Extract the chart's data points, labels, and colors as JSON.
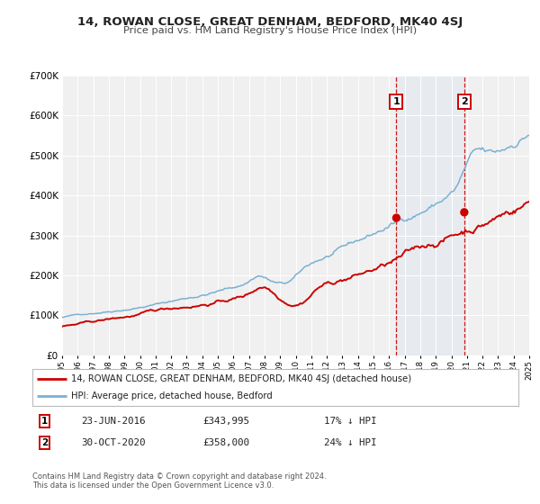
{
  "title": "14, ROWAN CLOSE, GREAT DENHAM, BEDFORD, MK40 4SJ",
  "subtitle": "Price paid vs. HM Land Registry's House Price Index (HPI)",
  "legend_entry1": "14, ROWAN CLOSE, GREAT DENHAM, BEDFORD, MK40 4SJ (detached house)",
  "legend_entry2": "HPI: Average price, detached house, Bedford",
  "annotation1_date": "23-JUN-2016",
  "annotation1_price": "£343,995",
  "annotation1_hpi": "17% ↓ HPI",
  "annotation2_date": "30-OCT-2020",
  "annotation2_price": "£358,000",
  "annotation2_hpi": "24% ↓ HPI",
  "color_price_paid": "#cc0000",
  "color_hpi": "#7ab0d4",
  "background_color": "#ffffff",
  "plot_bg_color": "#f0f0f0",
  "ylim": [
    0,
    700000
  ],
  "ytick_labels": [
    "£0",
    "£100K",
    "£200K",
    "£300K",
    "£400K",
    "£500K",
    "£600K",
    "£700K"
  ],
  "ytick_vals": [
    0,
    100000,
    200000,
    300000,
    400000,
    500000,
    600000,
    700000
  ],
  "sale1_year": 2016.47,
  "sale1_value": 343995,
  "sale2_year": 2020.83,
  "sale2_value": 358000,
  "footnote_line1": "Contains HM Land Registry data © Crown copyright and database right 2024.",
  "footnote_line2": "This data is licensed under the Open Government Licence v3.0."
}
